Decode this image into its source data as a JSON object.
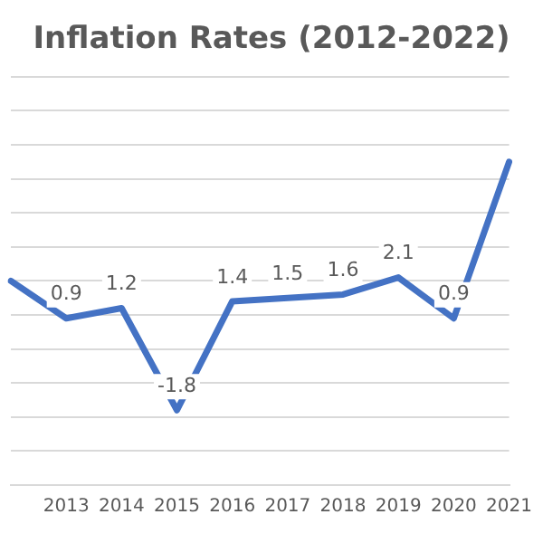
{
  "chart_data": {
    "type": "line",
    "title": "Inflation Rates (2012-2022)",
    "categories": [
      null,
      "2013",
      "2014",
      "2015",
      "2016",
      "2017",
      "2018",
      "2019",
      "2020",
      "2021"
    ],
    "series": [
      {
        "color": "#4472c4",
        "values": [
          2.0,
          0.9,
          1.2,
          -1.8,
          1.4,
          1.5,
          1.6,
          2.1,
          0.9,
          5.5
        ],
        "value_labels": [
          null,
          "0.9",
          "1.2",
          "-1.8",
          "1.4",
          "1.5",
          "1.6",
          "2.1",
          "0.9",
          null
        ]
      }
    ],
    "ylim": [
      -4,
      8
    ],
    "yticks": [
      {
        "value": -4,
        "label": null
      },
      {
        "value": -3,
        "label": null
      },
      {
        "value": -2,
        "label": null
      },
      {
        "value": -1,
        "label": null
      },
      {
        "value": 0,
        "label": null
      },
      {
        "value": 1,
        "label": null
      },
      {
        "value": 2,
        "label": null
      },
      {
        "value": 3,
        "label": null
      },
      {
        "value": 4,
        "label": null
      },
      {
        "value": 5,
        "label": null
      },
      {
        "value": 6,
        "label": null
      },
      {
        "value": 7,
        "label": null
      },
      {
        "value": 8,
        "label": null
      }
    ],
    "grid": "y",
    "tick_labels": "x",
    "legend": false,
    "marker": "none",
    "line_style": "solid"
  }
}
